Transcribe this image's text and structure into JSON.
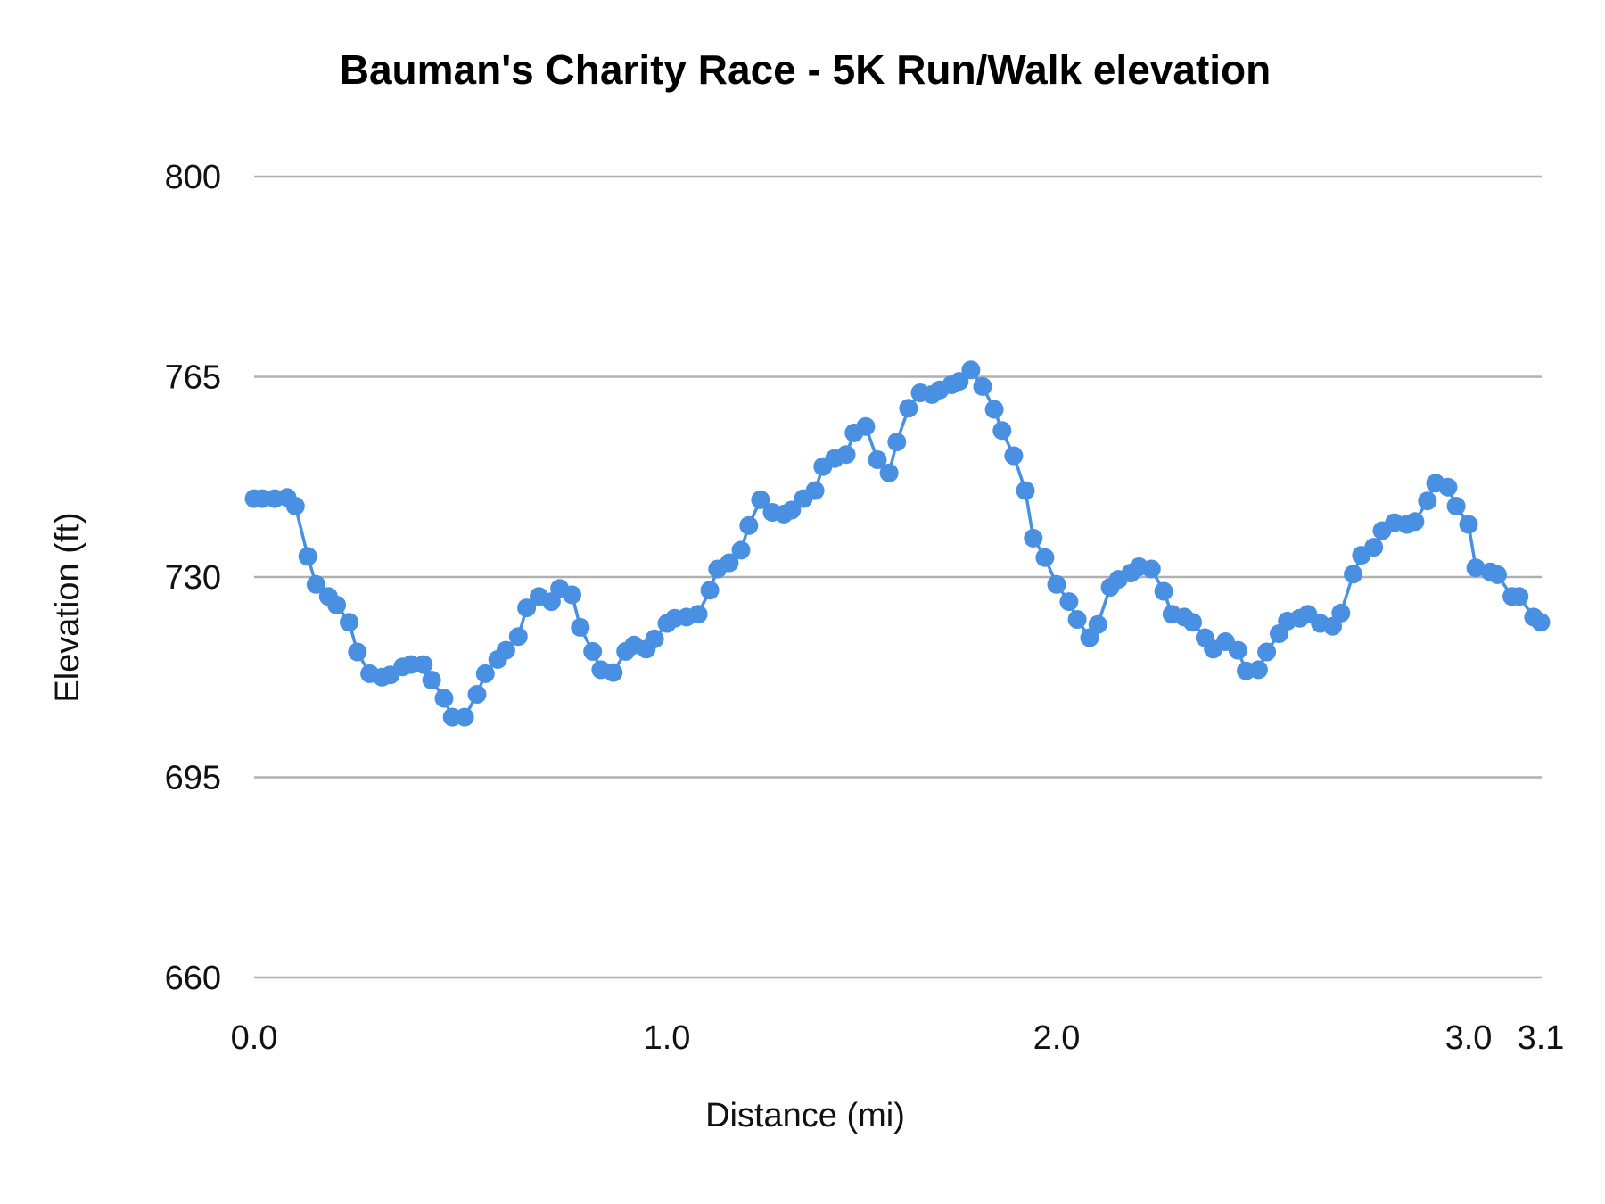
{
  "chart_data": {
    "type": "line",
    "title": "Bauman's Charity Race - 5K Run/Walk elevation",
    "xlabel": "Distance (mi)",
    "ylabel": "Elevation (ft)",
    "xlim": [
      0,
      3.1
    ],
    "ylim": [
      660,
      800
    ],
    "x_ticks": [
      "0.0",
      "1.0",
      "2.0",
      "3.0",
      "3.1"
    ],
    "y_ticks": [
      660,
      695,
      730,
      765,
      800
    ],
    "grid": true,
    "legend": "none",
    "markers": true,
    "color": "#4a90e2",
    "gridline_color": "#b0b0b0",
    "x": [
      0.0,
      0.02,
      0.05,
      0.08,
      0.1,
      0.13,
      0.15,
      0.18,
      0.2,
      0.23,
      0.25,
      0.28,
      0.31,
      0.33,
      0.36,
      0.38,
      0.41,
      0.43,
      0.46,
      0.48,
      0.51,
      0.54,
      0.56,
      0.59,
      0.61,
      0.64,
      0.66,
      0.69,
      0.72,
      0.74,
      0.77,
      0.79,
      0.82,
      0.84,
      0.87,
      0.9,
      0.92,
      0.95,
      0.97,
      1.0,
      1.02,
      1.05,
      1.08,
      1.11,
      1.13,
      1.16,
      1.19,
      1.21,
      1.24,
      1.27,
      1.3,
      1.32,
      1.35,
      1.38,
      1.4,
      1.43,
      1.46,
      1.48,
      1.51,
      1.54,
      1.57,
      1.59,
      1.62,
      1.65,
      1.68,
      1.7,
      1.73,
      1.75,
      1.78,
      1.81,
      1.84,
      1.86,
      1.89,
      1.92,
      1.94,
      1.97,
      2.0,
      2.03,
      2.05,
      2.08,
      2.1,
      2.13,
      2.15,
      2.18,
      2.2,
      2.23,
      2.26,
      2.28,
      2.31,
      2.33,
      2.36,
      2.38,
      2.41,
      2.44,
      2.46,
      2.49,
      2.51,
      2.54,
      2.56,
      2.59,
      2.61,
      2.64,
      2.67,
      2.69,
      2.72,
      2.74,
      2.77,
      2.79,
      2.82,
      2.85,
      2.87,
      2.9,
      2.92,
      2.95,
      2.97,
      3.0,
      3.01,
      3.03,
      3.04,
      3.06,
      3.07,
      3.09,
      3.1
    ],
    "y": [
      743.7,
      743.7,
      743.7,
      743.9,
      742.4,
      733.6,
      728.7,
      726.6,
      725.1,
      722.1,
      716.9,
      713.1,
      712.5,
      712.9,
      714.3,
      714.7,
      714.7,
      712.0,
      708.8,
      705.5,
      705.5,
      709.5,
      713.1,
      715.6,
      717.2,
      719.6,
      724.6,
      726.6,
      725.7,
      728.0,
      726.9,
      721.2,
      717.0,
      713.8,
      713.3,
      717.0,
      718.1,
      717.4,
      719.2,
      721.9,
      722.8,
      723.0,
      723.5,
      727.7,
      731.4,
      732.5,
      734.7,
      739.0,
      743.5,
      741.3,
      741.0,
      741.7,
      743.7,
      745.1,
      749.3,
      750.7,
      751.4,
      755.2,
      756.3,
      750.5,
      748.2,
      753.6,
      759.5,
      762.2,
      761.9,
      762.7,
      763.6,
      764.2,
      766.2,
      763.3,
      759.3,
      755.6,
      751.2,
      745.1,
      736.8,
      733.4,
      728.7,
      725.7,
      722.6,
      719.4,
      721.7,
      728.2,
      729.6,
      730.7,
      731.8,
      731.4,
      727.5,
      723.5,
      723.0,
      722.1,
      719.4,
      717.4,
      718.7,
      717.2,
      713.6,
      713.8,
      716.9,
      720.1,
      722.3,
      722.8,
      723.5,
      721.9,
      721.4,
      723.7,
      730.5,
      733.8,
      735.2,
      738.1,
      739.5,
      739.2,
      739.7,
      743.3,
      746.4,
      745.7,
      742.4,
      739.2,
      731.6,
      730.9,
      730.4,
      726.6,
      726.6,
      723.0,
      722.1
    ]
  }
}
